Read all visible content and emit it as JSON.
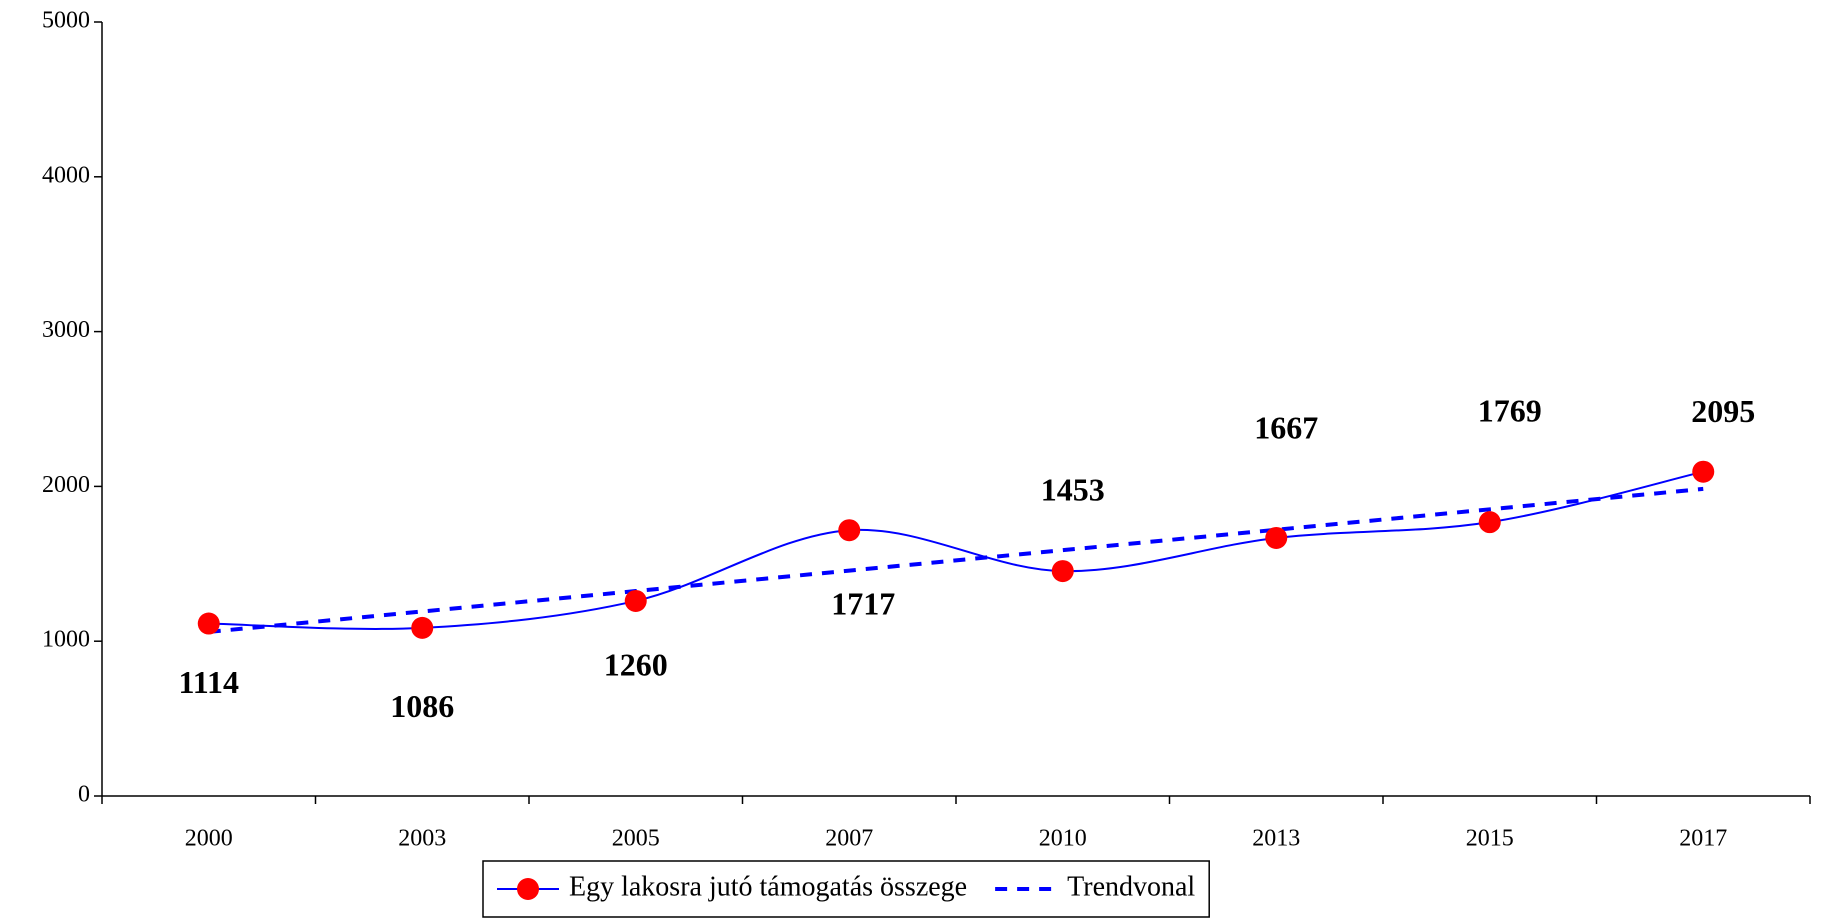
{
  "chart_data": {
    "type": "line",
    "categories": [
      "2000",
      "2003",
      "2005",
      "2007",
      "2010",
      "2013",
      "2015",
      "2017"
    ],
    "series": [
      {
        "name": "Egy lakosra jutó támogatás összege",
        "color": "#0000ff",
        "marker_color": "#ff0000",
        "smooth": true,
        "values": [
          1114,
          1086,
          1260,
          1717,
          1453,
          1667,
          1769,
          2095
        ]
      },
      {
        "name": "Trendvonal",
        "color": "#0000ff",
        "dashed": true,
        "values": [
          1060,
          1192,
          1324,
          1456,
          1588,
          1720,
          1852,
          1984
        ]
      }
    ],
    "data_labels_series": 0,
    "ylim": [
      0,
      5000
    ],
    "yticks": [
      0,
      1000,
      2000,
      3000,
      4000,
      5000
    ],
    "grid": false,
    "legend": "bottom"
  }
}
